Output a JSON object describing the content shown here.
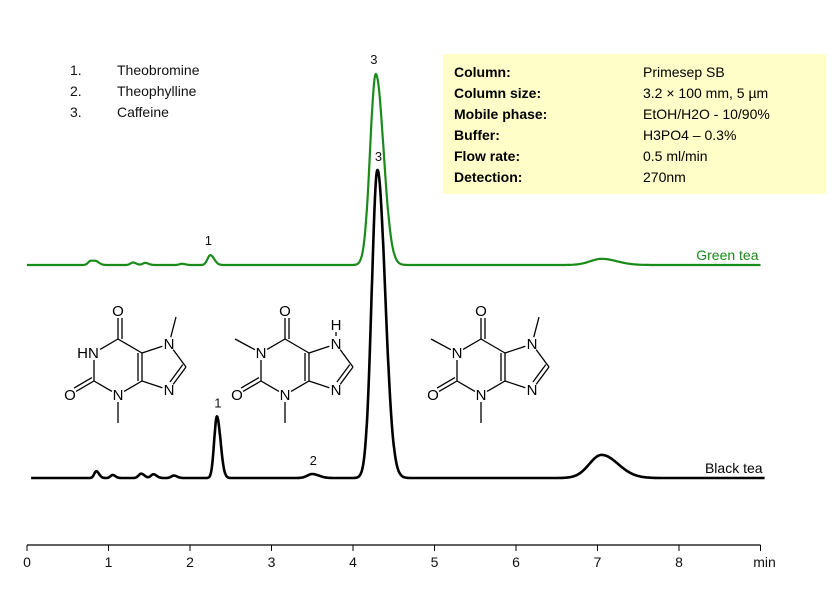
{
  "chart_data": {
    "type": "line",
    "xlabel": "min",
    "xlim": [
      0,
      9
    ],
    "x_ticks": [
      "0",
      "1",
      "2",
      "3",
      "4",
      "5",
      "6",
      "7",
      "8"
    ],
    "grid": false,
    "series": [
      {
        "name": "Green tea",
        "color": "#1a8a1a",
        "x_range": [
          0,
          9
        ],
        "peaks": [
          {
            "rt": 0.78,
            "height": 1.3,
            "sigma": 0.03
          },
          {
            "rt": 0.85,
            "height": 1.0,
            "sigma": 0.03
          },
          {
            "rt": 1.3,
            "height": 0.8,
            "sigma": 0.03
          },
          {
            "rt": 1.45,
            "height": 0.7,
            "sigma": 0.03
          },
          {
            "rt": 1.9,
            "height": 0.4,
            "sigma": 0.03
          },
          {
            "rt": 2.25,
            "height": 3.2,
            "sigma": 0.035,
            "label": "1"
          },
          {
            "rt": 4.28,
            "height": 62,
            "sigma": 0.07,
            "label": "3"
          },
          {
            "rt": 7.05,
            "height": 2.0,
            "sigma": 0.14
          }
        ]
      },
      {
        "name": "Black tea",
        "color": "#000000",
        "x_range": [
          0.05,
          9.05
        ],
        "peaks": [
          {
            "rt": 0.85,
            "height": 2.2,
            "sigma": 0.025
          },
          {
            "rt": 1.05,
            "height": 1.0,
            "sigma": 0.025
          },
          {
            "rt": 1.4,
            "height": 1.4,
            "sigma": 0.03
          },
          {
            "rt": 1.55,
            "height": 1.2,
            "sigma": 0.03
          },
          {
            "rt": 1.8,
            "height": 0.8,
            "sigma": 0.03
          },
          {
            "rt": 2.33,
            "height": 20,
            "sigma": 0.033,
            "label": "1"
          },
          {
            "rt": 3.5,
            "height": 1.3,
            "sigma": 0.06,
            "label": "2"
          },
          {
            "rt": 4.3,
            "height": 100,
            "sigma": 0.07,
            "label": "3"
          },
          {
            "rt": 7.05,
            "height": 7.5,
            "sigma": 0.15
          }
        ]
      }
    ]
  },
  "legend": [
    {
      "num": "1.",
      "name": "Theobromine"
    },
    {
      "num": "2.",
      "name": "Theophylline"
    },
    {
      "num": "3.",
      "name": "Caffeine"
    }
  ],
  "conditions": [
    {
      "key": "Column:",
      "value": "Primesep  SB"
    },
    {
      "key": "Column size:",
      "value": "3.2 × 100 mm, 5 µm"
    },
    {
      "key": "Mobile phase:",
      "value": "EtOH/H2O - 10/90%"
    },
    {
      "key": "Buffer:",
      "value": "H3PO4 – 0.3%"
    },
    {
      "key": "Flow rate:",
      "value": "0.5 ml/min"
    },
    {
      "key": "Detection:",
      "value": "270nm"
    }
  ],
  "structures": [
    {
      "name": "Theobromine",
      "N1": "HN",
      "N1_methyl": false,
      "N3": "N",
      "N7": "N",
      "N7_methyl": true,
      "N7_H": "",
      "N9": "N",
      "O": "O"
    },
    {
      "name": "Theophylline",
      "N1": "N",
      "N1_methyl": true,
      "N3": "N",
      "N7": "N",
      "N7_methyl": false,
      "N7_H": "H",
      "N9": "N",
      "O": "O"
    },
    {
      "name": "Caffeine",
      "N1": "N",
      "N1_methyl": true,
      "N3": "N",
      "N7": "N",
      "N7_methyl": true,
      "N7_H": "",
      "N9": "N",
      "O": "O"
    }
  ]
}
